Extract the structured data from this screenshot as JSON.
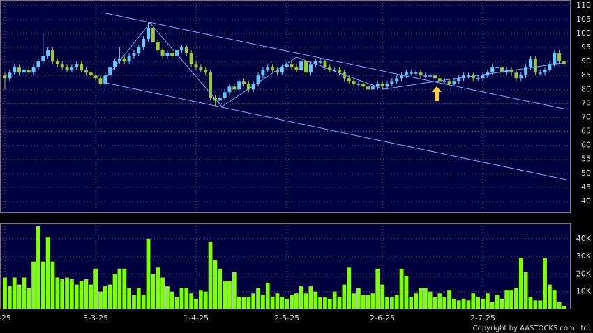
{
  "chart_data": [
    {
      "type": "candlestick",
      "categories": [
        "-25",
        null,
        null,
        null,
        null,
        null,
        null,
        null,
        null,
        null,
        null,
        null,
        null,
        null,
        null,
        null,
        null,
        null,
        null,
        "3-3-25",
        null,
        null,
        null,
        null,
        null,
        null,
        null,
        null,
        null,
        null,
        null,
        null,
        null,
        null,
        null,
        null,
        null,
        null,
        null,
        null,
        "1-4-25",
        null,
        null,
        null,
        null,
        null,
        null,
        null,
        null,
        null,
        null,
        null,
        null,
        null,
        null,
        null,
        null,
        null,
        null,
        "2-5-25",
        null,
        null,
        null,
        null,
        null,
        null,
        null,
        null,
        null,
        null,
        null,
        null,
        null,
        null,
        null,
        null,
        null,
        null,
        null,
        "2-6-25",
        null,
        null,
        null,
        null,
        null,
        null,
        null,
        null,
        null,
        null,
        null,
        null,
        null,
        null,
        null,
        null,
        null,
        null,
        null,
        null,
        "2-7-25",
        null,
        null,
        null,
        null,
        null,
        null,
        null,
        null,
        null,
        null,
        null,
        null,
        null,
        null,
        null,
        null,
        null
      ],
      "open": [
        85,
        84,
        86,
        88,
        86,
        87,
        86,
        88,
        90,
        92,
        94,
        90,
        89,
        88,
        87,
        88,
        89,
        87,
        86,
        85,
        84,
        82,
        85,
        88,
        90,
        91,
        90,
        92,
        93,
        95,
        98,
        102,
        97,
        94,
        92,
        93,
        92,
        94,
        95,
        93,
        89,
        88,
        87,
        86,
        77,
        76,
        77,
        79,
        81,
        80,
        83,
        82,
        80,
        82,
        85,
        87,
        88,
        87,
        86,
        88,
        89,
        88,
        87,
        90,
        86,
        89,
        90,
        90,
        88,
        87,
        87,
        86,
        84,
        83,
        82,
        82,
        81,
        80,
        81,
        82,
        81,
        82,
        83,
        84,
        85,
        86,
        86,
        86,
        85,
        85,
        85,
        84,
        83,
        83,
        82,
        83,
        84,
        85,
        85,
        84,
        84,
        85,
        86,
        88,
        88,
        86,
        87,
        86,
        84,
        85,
        88,
        91,
        86,
        86,
        87,
        89,
        93,
        90
      ],
      "high": [
        86,
        87,
        89,
        89,
        88,
        88,
        89,
        91,
        100,
        95,
        95,
        91,
        90,
        89,
        89,
        90,
        90,
        88,
        87,
        86,
        85,
        86,
        89,
        91,
        95,
        92,
        93,
        94,
        96,
        99,
        104,
        103,
        98,
        95,
        94,
        94,
        95,
        96,
        96,
        94,
        90,
        89,
        88,
        87,
        78,
        78,
        80,
        82,
        82,
        84,
        84,
        83,
        83,
        86,
        88,
        89,
        89,
        88,
        89,
        90,
        90,
        89,
        91,
        91,
        90,
        91,
        91,
        91,
        89,
        88,
        88,
        87,
        85,
        84,
        83,
        83,
        82,
        82,
        83,
        83,
        83,
        84,
        85,
        86,
        87,
        87,
        87,
        87,
        86,
        86,
        86,
        85,
        84,
        84,
        84,
        85,
        86,
        86,
        86,
        85,
        86,
        87,
        89,
        89,
        89,
        88,
        88,
        87,
        86,
        89,
        92,
        92,
        87,
        88,
        90,
        94,
        94,
        91
      ],
      "low": [
        80,
        83,
        85,
        85,
        85,
        85,
        85,
        87,
        89,
        91,
        89,
        88,
        87,
        86,
        86,
        87,
        86,
        85,
        84,
        83,
        81,
        81,
        84,
        87,
        89,
        89,
        89,
        91,
        92,
        94,
        97,
        96,
        93,
        91,
        91,
        91,
        91,
        93,
        92,
        88,
        87,
        86,
        85,
        76,
        74,
        75,
        76,
        78,
        79,
        79,
        81,
        79,
        79,
        81,
        84,
        86,
        86,
        85,
        85,
        87,
        87,
        86,
        86,
        85,
        85,
        88,
        89,
        87,
        86,
        86,
        85,
        83,
        82,
        81,
        81,
        80,
        79,
        79,
        80,
        80,
        80,
        81,
        82,
        83,
        84,
        85,
        85,
        84,
        84,
        84,
        83,
        82,
        82,
        81,
        81,
        82,
        83,
        84,
        83,
        83,
        83,
        84,
        85,
        87,
        85,
        85,
        85,
        83,
        83,
        84,
        87,
        85,
        85,
        85,
        86,
        88,
        89,
        88
      ],
      "close": [
        84,
        86,
        88,
        86,
        87,
        86,
        88,
        90,
        92,
        94,
        90,
        89,
        88,
        87,
        88,
        89,
        87,
        86,
        85,
        84,
        82,
        85,
        88,
        90,
        91,
        90,
        92,
        93,
        95,
        98,
        102,
        97,
        94,
        92,
        93,
        92,
        94,
        95,
        93,
        89,
        88,
        87,
        86,
        77,
        76,
        77,
        79,
        81,
        80,
        83,
        82,
        80,
        82,
        85,
        87,
        88,
        87,
        86,
        88,
        89,
        88,
        87,
        90,
        86,
        89,
        90,
        90,
        88,
        87,
        87,
        86,
        84,
        83,
        82,
        82,
        81,
        80,
        81,
        82,
        81,
        82,
        83,
        84,
        85,
        86,
        86,
        86,
        85,
        85,
        85,
        84,
        83,
        83,
        82,
        83,
        84,
        85,
        85,
        84,
        84,
        85,
        86,
        88,
        88,
        86,
        87,
        86,
        84,
        85,
        88,
        91,
        86,
        86,
        87,
        89,
        93,
        90,
        89
      ],
      "up_color": "#66ccff",
      "down_color": "#99cc33",
      "ylim": [
        36,
        111.7
      ],
      "yticks": [
        40,
        45,
        50,
        55,
        60,
        65,
        70,
        75,
        80,
        85,
        90,
        95,
        100,
        105,
        110
      ],
      "grid": true
    },
    {
      "type": "bar",
      "values": [
        18000,
        13000,
        18000,
        14000,
        18000,
        12000,
        27000,
        47000,
        27000,
        41000,
        27000,
        18000,
        17000,
        18000,
        17000,
        14000,
        16000,
        17000,
        14000,
        23000,
        10000,
        13000,
        14000,
        20000,
        23000,
        23000,
        12000,
        8000,
        12000,
        8000,
        40000,
        20000,
        24000,
        18000,
        13000,
        10000,
        7000,
        12000,
        12000,
        9000,
        6000,
        11000,
        10000,
        38000,
        28000,
        23000,
        16000,
        16000,
        21000,
        7000,
        7000,
        7000,
        9000,
        12000,
        8000,
        15000,
        7000,
        9000,
        7000,
        6000,
        8000,
        9000,
        13000,
        9000,
        13000,
        10000,
        7000,
        7000,
        6000,
        10000,
        7000,
        14000,
        24000,
        9000,
        12000,
        8000,
        8000,
        9000,
        23000,
        14000,
        7000,
        7000,
        8000,
        23000,
        19000,
        7000,
        9000,
        12000,
        12000,
        10000,
        7000,
        9000,
        7000,
        11000,
        6000,
        5000,
        6000,
        5000,
        9000,
        7000,
        6000,
        9000,
        4000,
        8000,
        6000,
        11000,
        11000,
        12000,
        29000,
        21000,
        7000,
        5000,
        5000,
        29000,
        14000,
        11000,
        4000,
        2000
      ],
      "color": "#80ff00",
      "ylim": [
        0,
        48600
      ],
      "yticks": [
        {
          "value": 10000,
          "label": "10K"
        },
        {
          "value": 20000,
          "label": "20K"
        },
        {
          "value": 30000,
          "label": "30K"
        },
        {
          "value": 40000,
          "label": "40K"
        }
      ],
      "grid": true
    }
  ],
  "copyright": "Copyright by AASTOCKS.com Ltd."
}
